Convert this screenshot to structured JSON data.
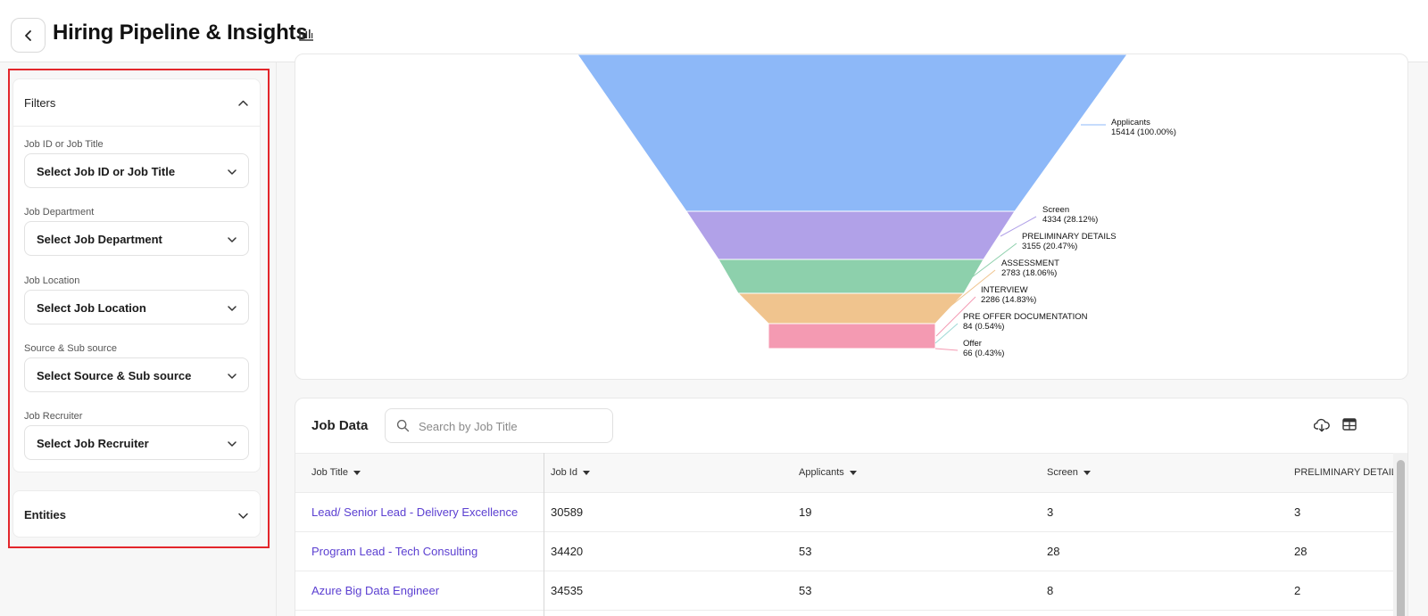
{
  "header": {
    "title": "Hiring Pipeline & Insights",
    "back_icon": "chevron-left-icon",
    "title_icon": "bar-chart-icon"
  },
  "filters": {
    "title": "Filters",
    "fields": [
      {
        "label": "Job ID or Job Title",
        "value": "Select Job ID or Job Title"
      },
      {
        "label": "Job Department",
        "value": "Select Job Department"
      },
      {
        "label": "Job Location",
        "value": "Select Job Location"
      },
      {
        "label": "Source & Sub source",
        "value": "Select Source & Sub source"
      },
      {
        "label": "Job Recruiter",
        "value": "Select Job Recruiter"
      }
    ]
  },
  "entities": {
    "title": "Entities"
  },
  "chart_data": {
    "type": "funnel",
    "stages": [
      {
        "name": "Applicants",
        "count": 15414,
        "label": "15414 (100.00%)",
        "color": "#8db8f8"
      },
      {
        "name": "Screen",
        "count": 4334,
        "label": "4334 (28.12%)",
        "color": "#b1a1e8"
      },
      {
        "name": "PRELIMINARY DETAILS",
        "count": 3155,
        "label": "3155 (20.47%)",
        "color": "#8dd0ac"
      },
      {
        "name": "ASSESSMENT",
        "count": 2783,
        "label": "2783 (18.06%)",
        "color": "#f0c48e"
      },
      {
        "name": "INTERVIEW",
        "count": 2286,
        "label": "2286 (14.83%)",
        "color": "#f49ab2"
      },
      {
        "name": "PRE OFFER DOCUMENTATION",
        "count": 84,
        "label": "84 (0.54%)",
        "color": "#9fd9d6"
      },
      {
        "name": "Offer",
        "count": 66,
        "label": "66 (0.43%)",
        "color": "#f49ab2"
      }
    ]
  },
  "job_data": {
    "title": "Job Data",
    "search_placeholder": "Search by Job Title",
    "icons": [
      "cloud-download-icon",
      "table-columns-icon"
    ],
    "columns": [
      "Job Title",
      "Job Id",
      "Applicants",
      "Screen",
      "PRELIMINARY DETAILS"
    ],
    "rows": [
      {
        "title": "Lead/ Senior Lead - Delivery Excellence",
        "id": "30589",
        "applicants": "19",
        "screen": "3",
        "prelim": "3"
      },
      {
        "title": "Program Lead - Tech Consulting",
        "id": "34420",
        "applicants": "53",
        "screen": "28",
        "prelim": "28"
      },
      {
        "title": "Azure Big Data Engineer",
        "id": "34535",
        "applicants": "53",
        "screen": "8",
        "prelim": "2"
      }
    ]
  }
}
